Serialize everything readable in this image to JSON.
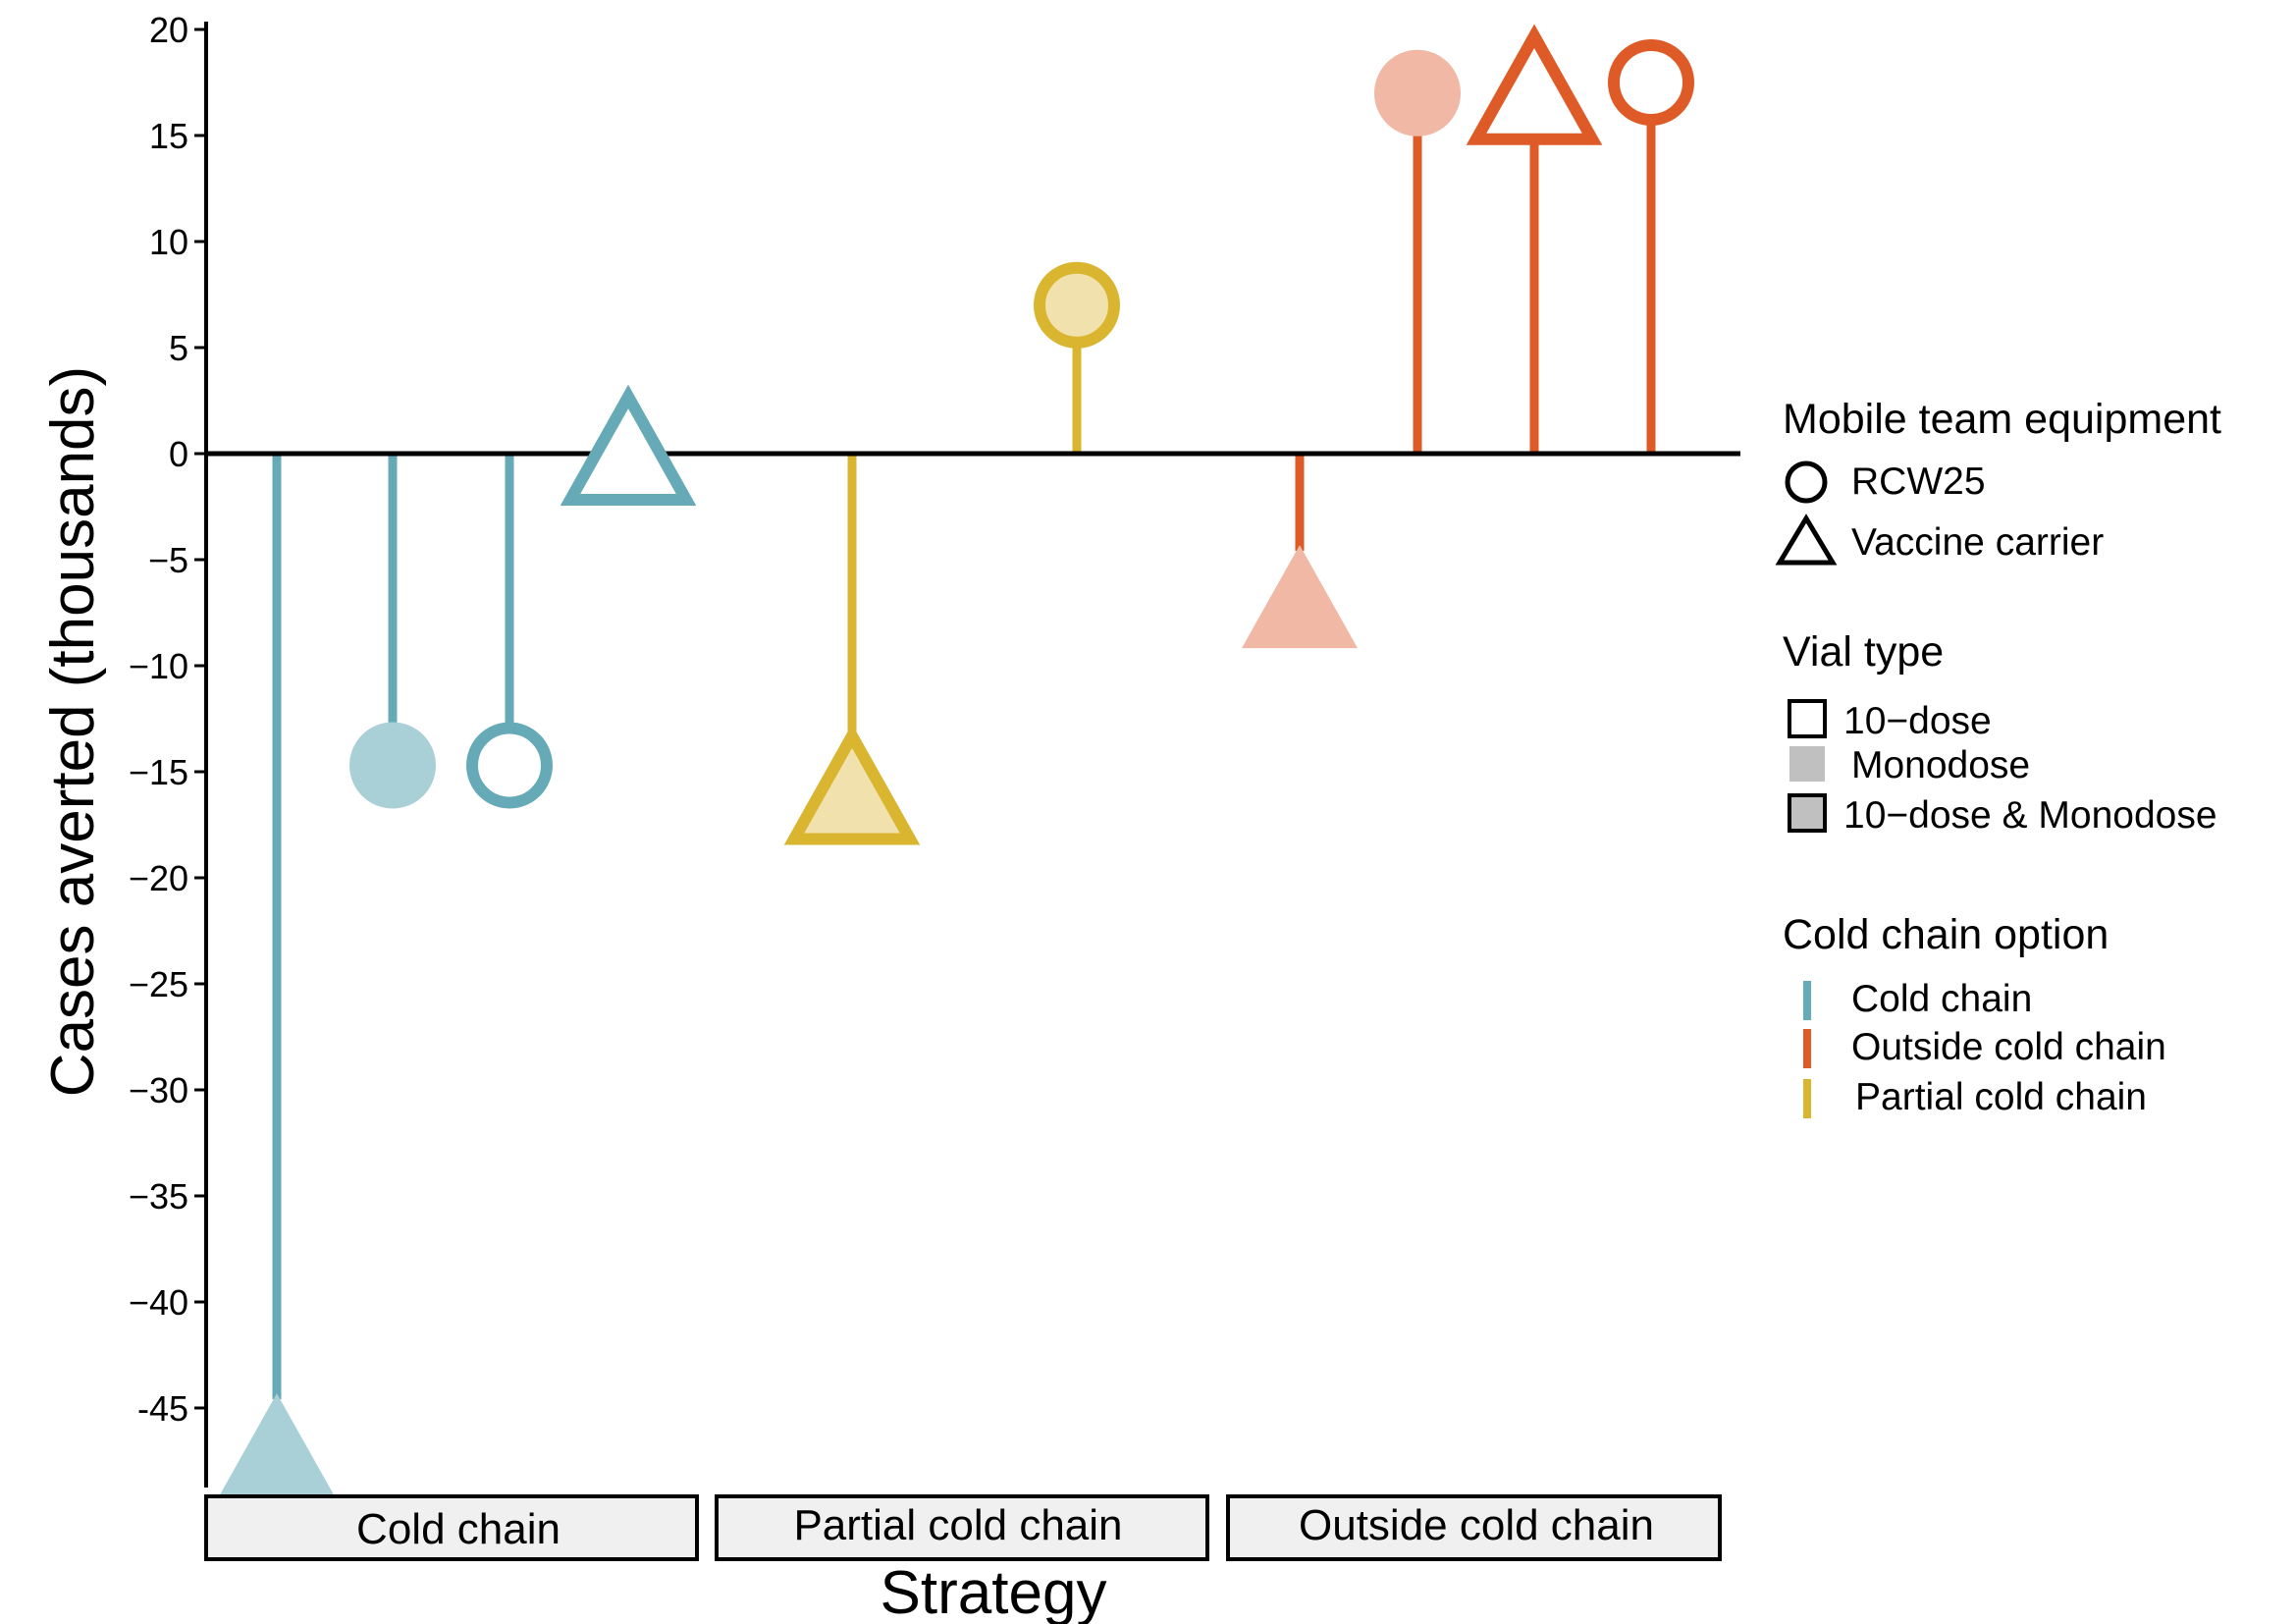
{
  "chart_data": {
    "type": "scatter",
    "subtype": "lollipop",
    "title": "",
    "xlabel": "Strategy",
    "ylabel": "Cases averted (thousands)",
    "ylim": [
      -48,
      20
    ],
    "yticks": [
      20,
      15,
      10,
      5,
      0,
      -5,
      -10,
      -15,
      -20,
      -25,
      -30,
      -35,
      -40,
      -45
    ],
    "ytick_labels": [
      "20",
      "15",
      "10",
      "5",
      "0",
      "−5",
      "−10",
      "−15",
      "−20",
      "−25",
      "−30",
      "−35",
      "−40",
      "-45"
    ],
    "grid": false,
    "panels": [
      "Cold chain",
      "Partial cold chain",
      "Outside cold chain"
    ],
    "points": [
      {
        "panel": "Cold chain",
        "value": -46.5,
        "equipment": "Vaccine carrier",
        "vial": "Monodose",
        "color_option": "Cold chain"
      },
      {
        "panel": "Cold chain",
        "value": -14.7,
        "equipment": "RCW25",
        "vial": "Monodose",
        "color_option": "Cold chain"
      },
      {
        "panel": "Cold chain",
        "value": -14.7,
        "equipment": "RCW25",
        "vial": "10-dose",
        "color_option": "Cold chain"
      },
      {
        "panel": "Cold chain",
        "value": 0.5,
        "equipment": "Vaccine carrier",
        "vial": "10-dose",
        "color_option": "Cold chain"
      },
      {
        "panel": "Partial cold chain",
        "value": -15.5,
        "equipment": "Vaccine carrier",
        "vial": "10-dose & Monodose",
        "color_option": "Partial cold chain"
      },
      {
        "panel": "Partial cold chain",
        "value": 7.0,
        "equipment": "RCW25",
        "vial": "10-dose & Monodose",
        "color_option": "Partial cold chain"
      },
      {
        "panel": "Outside cold chain",
        "value": -6.5,
        "equipment": "Vaccine carrier",
        "vial": "Monodose",
        "color_option": "Outside cold chain"
      },
      {
        "panel": "Outside cold chain",
        "value": 17.0,
        "equipment": "RCW25",
        "vial": "Monodose",
        "color_option": "Outside cold chain"
      },
      {
        "panel": "Outside cold chain",
        "value": 17.5,
        "equipment": "Vaccine carrier",
        "vial": "10-dose",
        "color_option": "Outside cold chain"
      },
      {
        "panel": "Outside cold chain",
        "value": 17.5,
        "equipment": "RCW25",
        "vial": "10-dose",
        "color_option": "Outside cold chain"
      }
    ],
    "legend": {
      "position": "right",
      "equipment": {
        "title": "Mobile team equipment",
        "items": [
          {
            "label": "RCW25",
            "shape": "circle"
          },
          {
            "label": "Vaccine carrier",
            "shape": "triangle"
          }
        ]
      },
      "vial": {
        "title": "Vial type",
        "items": [
          {
            "label": "10−dose",
            "style": "outline"
          },
          {
            "label": "Monodose",
            "style": "light-fill"
          },
          {
            "label": "10−dose & Monodose",
            "style": "fill-outline"
          }
        ]
      },
      "cold_chain": {
        "title": "Cold chain option",
        "items": [
          {
            "label": "Cold chain",
            "color": "#66aab8"
          },
          {
            "label": "Outside cold chain",
            "color": "#de5a26"
          },
          {
            "label": "Partial cold chain",
            "color": "#d9b530"
          }
        ]
      }
    },
    "colors": {
      "Cold chain": {
        "main": "#66aab8",
        "light": "#a9d0d6"
      },
      "Partial cold chain": {
        "main": "#d9b530",
        "light": "#f0e1ad"
      },
      "Outside cold chain": {
        "main": "#de5a26",
        "light": "#f0b8a5"
      }
    }
  }
}
